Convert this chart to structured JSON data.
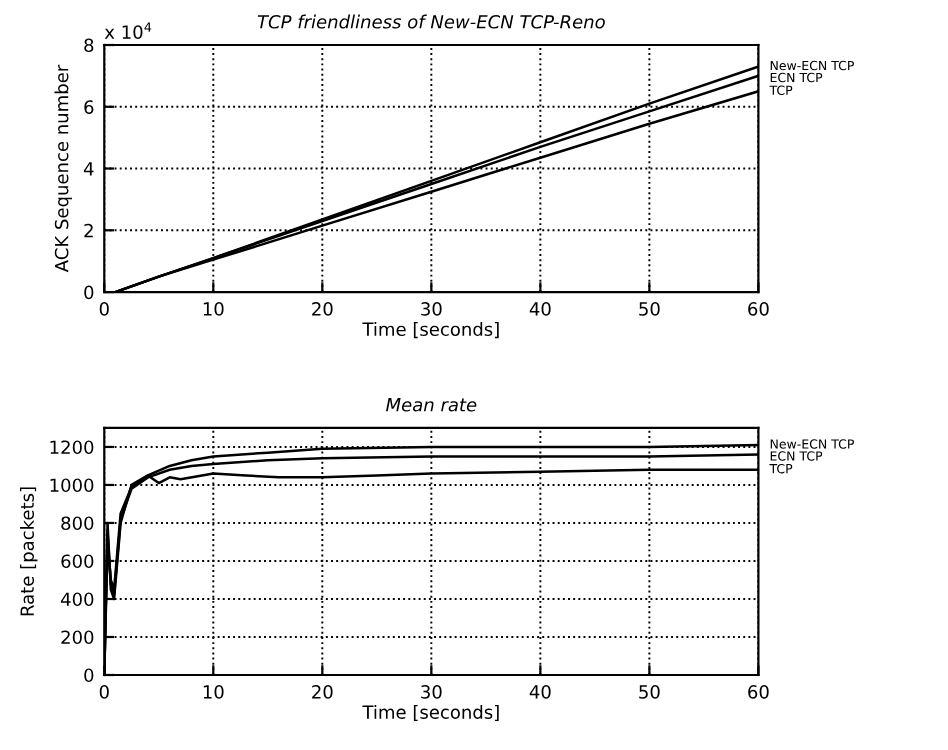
{
  "chart_data": [
    {
      "type": "line",
      "title": "TCP friendliness of New-ECN TCP-Reno",
      "xlabel": "Time [seconds]",
      "ylabel": "ACK Sequence number",
      "annotations": [
        "x 10$^{4}$"
      ],
      "grid": true,
      "line_style": "solid",
      "xlim": [
        0,
        60
      ],
      "ylim": [
        0,
        8
      ],
      "xticks": [
        0,
        10,
        20,
        30,
        40,
        50,
        60
      ],
      "yticks": [
        0,
        2,
        4,
        6,
        8
      ],
      "series": [
        {
          "name": "New-ECN TCP",
          "color": "#000000",
          "x": [
            1,
            5,
            10,
            20,
            30,
            40,
            50,
            60
          ],
          "values": [
            0,
            0.5,
            1.1,
            2.35,
            3.6,
            4.85,
            6.1,
            7.3
          ]
        },
        {
          "name": "ECN TCP",
          "color": "#000000",
          "x": [
            1,
            5,
            10,
            20,
            30,
            40,
            50,
            60
          ],
          "values": [
            0,
            0.5,
            1.1,
            2.3,
            3.5,
            4.7,
            5.85,
            7.0
          ]
        },
        {
          "name": "TCP",
          "color": "#000000",
          "x": [
            1,
            5,
            10,
            20,
            30,
            40,
            50,
            60
          ],
          "values": [
            0,
            0.5,
            1.05,
            2.15,
            3.25,
            4.35,
            5.45,
            6.5
          ]
        }
      ]
    },
    {
      "type": "line",
      "title": "Mean rate",
      "xlabel": "Time [seconds]",
      "ylabel": "Rate [packets]",
      "grid": true,
      "line_style": "solid",
      "xlim": [
        0,
        60
      ],
      "ylim": [
        0,
        1300
      ],
      "xticks": [
        0,
        10,
        20,
        30,
        40,
        50,
        60
      ],
      "yticks": [
        0,
        200,
        400,
        600,
        800,
        1000,
        1200
      ],
      "series": [
        {
          "name": "New-ECN TCP",
          "color": "#000000",
          "x": [
            0,
            0.3,
            0.6,
            0.9,
            1.5,
            2.5,
            4,
            6,
            8,
            10,
            15,
            20,
            30,
            40,
            50,
            60
          ],
          "values": [
            0,
            700,
            500,
            450,
            850,
            990,
            1050,
            1100,
            1130,
            1150,
            1170,
            1190,
            1200,
            1200,
            1200,
            1210
          ]
        },
        {
          "name": "ECN TCP",
          "color": "#000000",
          "x": [
            0,
            0.3,
            0.6,
            0.9,
            1.5,
            2.5,
            4,
            6,
            8,
            10,
            15,
            20,
            30,
            40,
            50,
            60
          ],
          "values": [
            0,
            750,
            480,
            420,
            820,
            980,
            1040,
            1080,
            1100,
            1110,
            1130,
            1140,
            1150,
            1150,
            1150,
            1160
          ]
        },
        {
          "name": "TCP",
          "color": "#000000",
          "x": [
            0,
            0.3,
            0.6,
            0.9,
            1.5,
            2.5,
            4,
            5,
            6,
            7,
            10,
            13,
            16,
            20,
            25,
            30,
            40,
            50,
            60
          ],
          "values": [
            0,
            800,
            450,
            400,
            800,
            1000,
            1050,
            1010,
            1040,
            1030,
            1060,
            1050,
            1040,
            1040,
            1050,
            1060,
            1070,
            1080,
            1080
          ]
        }
      ]
    }
  ]
}
